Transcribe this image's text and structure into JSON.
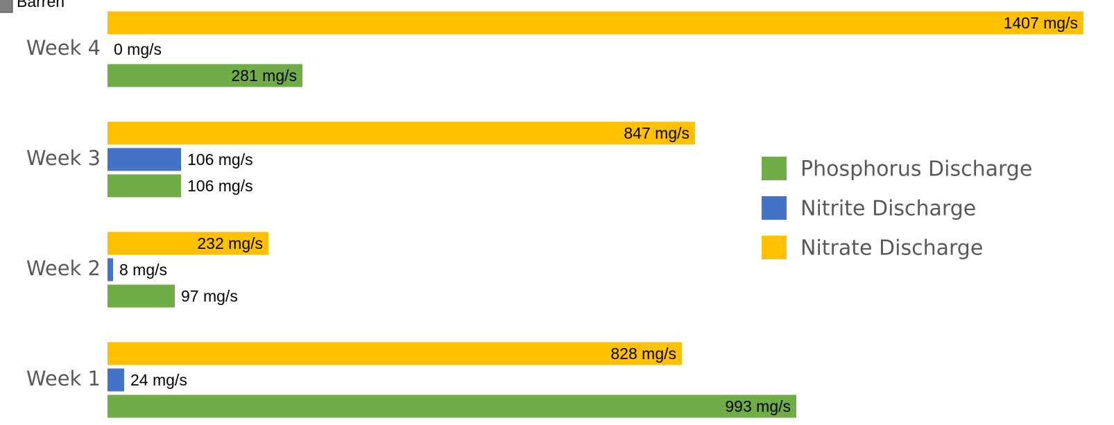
{
  "chart_data": {
    "type": "bar",
    "orientation": "horizontal",
    "legend_remnant": "Barren",
    "categories": [
      "Week 1",
      "Week 2",
      "Week 3",
      "Week 4"
    ],
    "series": [
      {
        "name": "Phosphorus Discharge",
        "color": "#70ad47",
        "values": [
          993,
          97,
          106,
          281
        ],
        "value_labels": [
          "993 mg/s",
          "97 mg/s",
          "106 mg/s",
          "281 mg/s"
        ]
      },
      {
        "name": "Nitrite Discharge",
        "color": "#4472c4",
        "values": [
          24,
          8,
          106,
          0
        ],
        "value_labels": [
          "24 mg/s",
          "8 mg/s",
          "106 mg/s",
          "0 mg/s"
        ]
      },
      {
        "name": "Nitrate Discharge",
        "color": "#ffc000",
        "values": [
          828,
          232,
          847,
          1407
        ],
        "value_labels": [
          "828 mg/s",
          "232 mg/s",
          "847 mg/s",
          "1407 mg/s"
        ]
      }
    ],
    "legend": "right"
  }
}
